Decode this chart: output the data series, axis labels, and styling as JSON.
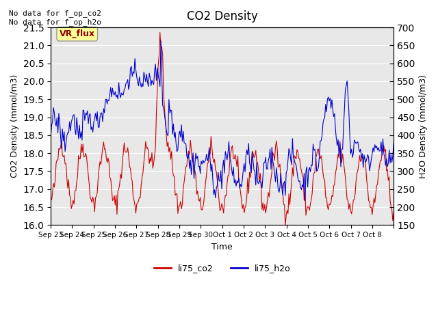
{
  "title": "CO2 Density",
  "xlabel": "Time",
  "ylabel_left": "CO2 Density (mmol/m3)",
  "ylabel_right": "H2O Density (mmol/m3)",
  "ylim_left": [
    16.0,
    21.5
  ],
  "ylim_right": [
    150,
    700
  ],
  "annotation_top": "No data for f_op_co2\nNo data for f_op_h2o",
  "vr_flux_label": "VR_flux",
  "legend_labels": [
    "li75_co2",
    "li75_h2o"
  ],
  "co2_color": "#cc0000",
  "h2o_color": "#0000cc",
  "bg_color": "#e8e8e8",
  "xtick_labels": [
    "Sep 23",
    "Sep 24",
    "Sep 25",
    "Sep 26",
    "Sep 27",
    "Sep 28",
    "Sep 29",
    "Sep 30",
    "Oct 1",
    "Oct 2",
    "Oct 3",
    "Oct 4",
    "Oct 5",
    "Oct 6",
    "Oct 7",
    "Oct 8"
  ],
  "yticks_left": [
    16.0,
    16.5,
    17.0,
    17.5,
    18.0,
    18.5,
    19.0,
    19.5,
    20.0,
    20.5,
    21.0,
    21.5
  ],
  "yticks_right": [
    150,
    200,
    250,
    300,
    350,
    400,
    450,
    500,
    550,
    600,
    650,
    700
  ]
}
